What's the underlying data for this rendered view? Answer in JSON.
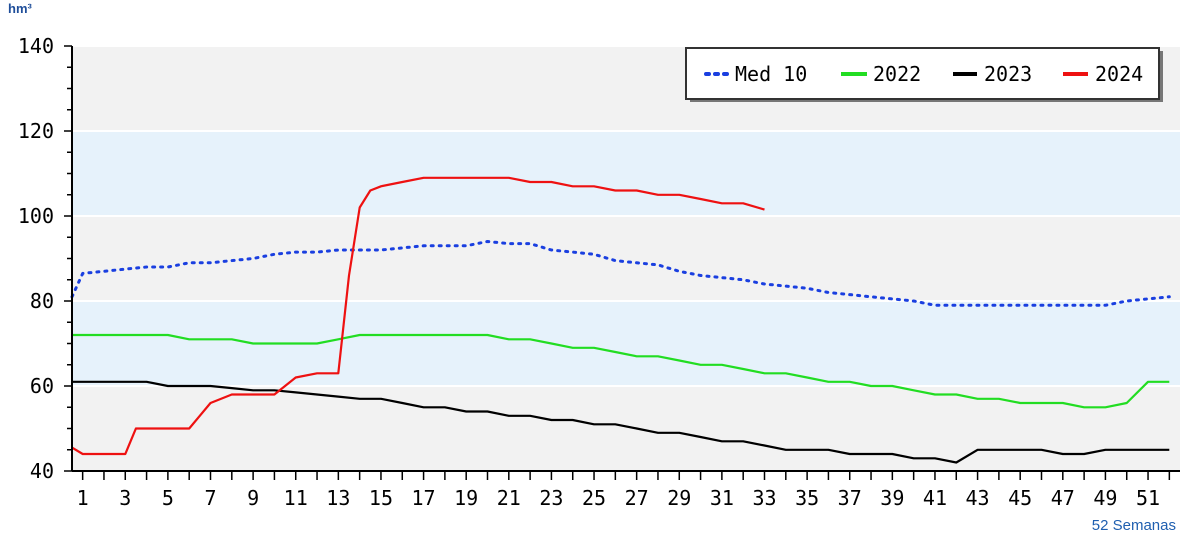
{
  "chart_data": {
    "type": "line",
    "unit_label": "hm³",
    "xlabel": "52 Semanas",
    "ylabel": "",
    "xlim": [
      0.5,
      52.5
    ],
    "ylim": [
      40,
      140
    ],
    "yticks": [
      40,
      60,
      80,
      100,
      120,
      140
    ],
    "xticks": [
      1,
      3,
      5,
      7,
      9,
      11,
      13,
      15,
      17,
      19,
      21,
      23,
      25,
      27,
      29,
      31,
      33,
      35,
      37,
      39,
      41,
      43,
      45,
      47,
      49,
      51
    ],
    "bands": [
      {
        "from": 60,
        "to": 80,
        "color": "#e6f2fb"
      },
      {
        "from": 100,
        "to": 120,
        "color": "#e6f2fb"
      }
    ],
    "plot_background": "#f2f2f2",
    "grid": true,
    "legend_position": "top-right",
    "series": [
      {
        "name": "Med 10",
        "color": "#1a3fe0",
        "style": "dotted",
        "x": [
          0.5,
          1,
          2,
          3,
          4,
          5,
          6,
          7,
          8,
          9,
          10,
          11,
          12,
          13,
          14,
          15,
          16,
          17,
          18,
          19,
          20,
          21,
          22,
          23,
          24,
          25,
          26,
          27,
          28,
          29,
          30,
          31,
          32,
          33,
          34,
          35,
          36,
          37,
          38,
          39,
          40,
          41,
          42,
          43,
          44,
          45,
          46,
          47,
          48,
          49,
          50,
          51,
          52
        ],
        "values": [
          81,
          86.5,
          87,
          87.5,
          88,
          88,
          89,
          89,
          89.5,
          90,
          91,
          91.5,
          91.5,
          92,
          92,
          92,
          92.5,
          93,
          93,
          93,
          94,
          93.5,
          93.5,
          92,
          91.5,
          91,
          89.5,
          89,
          88.5,
          87,
          86,
          85.5,
          85,
          84,
          83.5,
          83,
          82,
          81.5,
          81,
          80.5,
          80,
          79,
          79,
          79,
          79,
          79,
          79,
          79,
          79,
          79,
          80,
          80.5,
          81
        ]
      },
      {
        "name": "2022",
        "color": "#22dd22",
        "style": "solid",
        "x": [
          0.5,
          1,
          2,
          3,
          4,
          5,
          6,
          7,
          8,
          9,
          10,
          11,
          12,
          13,
          14,
          15,
          16,
          17,
          18,
          19,
          20,
          21,
          22,
          23,
          24,
          25,
          26,
          27,
          28,
          29,
          30,
          31,
          32,
          33,
          34,
          35,
          36,
          37,
          38,
          39,
          40,
          41,
          42,
          43,
          44,
          45,
          46,
          47,
          48,
          49,
          50,
          51,
          52
        ],
        "values": [
          72,
          72,
          72,
          72,
          72,
          72,
          71,
          71,
          71,
          70,
          70,
          70,
          70,
          71,
          72,
          72,
          72,
          72,
          72,
          72,
          72,
          71,
          71,
          70,
          69,
          69,
          68,
          67,
          67,
          66,
          65,
          65,
          64,
          63,
          63,
          62,
          61,
          61,
          60,
          60,
          59,
          58,
          58,
          57,
          57,
          56,
          56,
          56,
          55,
          55,
          56,
          61,
          61
        ]
      },
      {
        "name": "2023",
        "color": "#000000",
        "style": "solid",
        "x": [
          0.5,
          1,
          2,
          3,
          4,
          5,
          6,
          7,
          8,
          9,
          10,
          11,
          12,
          13,
          14,
          15,
          16,
          17,
          18,
          19,
          20,
          21,
          22,
          23,
          24,
          25,
          26,
          27,
          28,
          29,
          30,
          31,
          32,
          33,
          34,
          35,
          36,
          37,
          38,
          39,
          40,
          41,
          42,
          43,
          44,
          45,
          46,
          47,
          48,
          49,
          50,
          51,
          52
        ],
        "values": [
          61,
          61,
          61,
          61,
          61,
          60,
          60,
          60,
          59.5,
          59,
          59,
          58.5,
          58,
          57.5,
          57,
          57,
          56,
          55,
          55,
          54,
          54,
          53,
          53,
          52,
          52,
          51,
          51,
          50,
          49,
          49,
          48,
          47,
          47,
          46,
          45,
          45,
          45,
          44,
          44,
          44,
          43,
          43,
          42,
          45,
          45,
          45,
          45,
          44,
          44,
          45,
          45,
          45,
          45
        ]
      },
      {
        "name": "2024",
        "color": "#ee1111",
        "style": "solid",
        "x": [
          0.5,
          1,
          2,
          3,
          3.5,
          4,
          5,
          6,
          6.5,
          7,
          8,
          9,
          10,
          11,
          12,
          13,
          13.5,
          14,
          14.5,
          15,
          16,
          17,
          18,
          19,
          20,
          21,
          22,
          23,
          24,
          25,
          26,
          27,
          28,
          29,
          30,
          31,
          32,
          33
        ],
        "values": [
          45.5,
          44,
          44,
          44,
          50,
          50,
          50,
          50,
          53,
          56,
          58,
          58,
          58,
          62,
          63,
          63,
          86,
          102,
          106,
          107,
          108,
          109,
          109,
          109,
          109,
          109,
          108,
          108,
          107,
          107,
          106,
          106,
          105,
          105,
          104,
          103,
          103,
          101.5
        ]
      }
    ]
  }
}
